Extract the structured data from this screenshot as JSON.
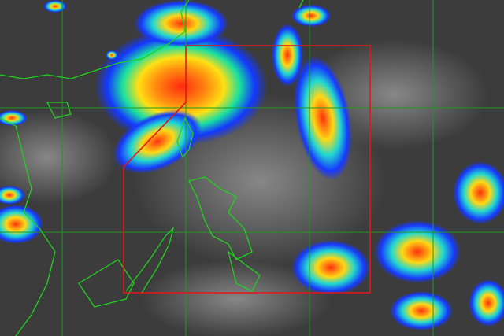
{
  "map": {
    "type": "satellite-infrared-enhanced",
    "colors": {
      "background": "#3c3c3c",
      "coastline": "#1fd21f",
      "gridline": "#1f9a1f",
      "boundary": "#e01818",
      "cloud_cold": "#ff2a10",
      "cloud_mid": "#ffe014",
      "cloud_warm": "#18e0e0",
      "cloud_edge": "#1438ff"
    },
    "overlays": [
      "lat-lon-grid",
      "coastlines",
      "area-of-responsibility-boundary"
    ]
  }
}
